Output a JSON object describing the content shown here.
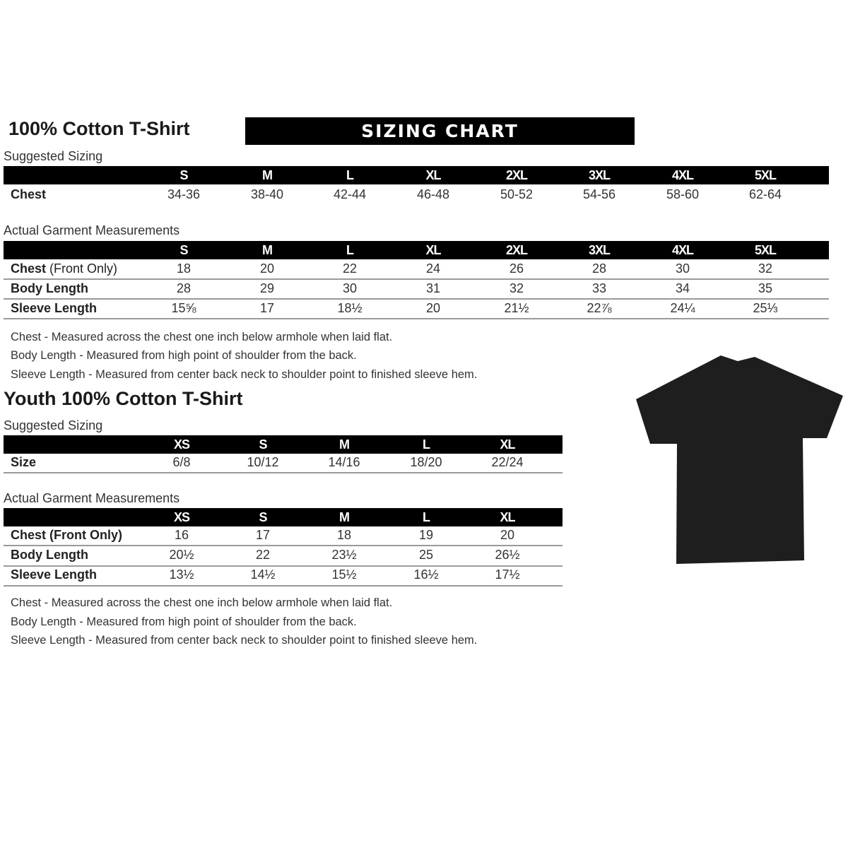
{
  "adult": {
    "title": "100% Cotton T-Shirt",
    "banner": "SIZING CHART",
    "suggested_label": "Suggested Sizing",
    "sizes": [
      "S",
      "M",
      "L",
      "XL",
      "2XL",
      "3XL",
      "4XL",
      "5XL"
    ],
    "suggested_rows": [
      {
        "label": "Chest",
        "values": [
          "34-36",
          "38-40",
          "42-44",
          "46-48",
          "50-52",
          "54-56",
          "58-60",
          "62-64"
        ]
      }
    ],
    "actual_label": "Actual Garment Measurements",
    "actual_rows": [
      {
        "label": "Chest",
        "label_suffix": " (Front Only)",
        "values": [
          "18",
          "20",
          "22",
          "24",
          "26",
          "28",
          "30",
          "32"
        ]
      },
      {
        "label": "Body Length",
        "values": [
          "28",
          "29",
          "30",
          "31",
          "32",
          "33",
          "34",
          "35"
        ]
      },
      {
        "label": "Sleeve Length",
        "values": [
          "15⅝",
          "17",
          "18½",
          "20",
          "21½",
          "22⅞",
          "24¼",
          "25⅓"
        ]
      }
    ],
    "notes": [
      "Chest - Measured across the chest one inch below armhole when laid flat.",
      "Body Length - Measured from high point of shoulder from the back.",
      "Sleeve Length - Measured from center back neck to shoulder point to finished sleeve hem."
    ]
  },
  "youth": {
    "title": "Youth 100% Cotton T-Shirt",
    "suggested_label": "Suggested Sizing",
    "sizes": [
      "XS",
      "S",
      "M",
      "L",
      "XL"
    ],
    "suggested_rows": [
      {
        "label": "Size",
        "values": [
          "6/8",
          "10/12",
          "14/16",
          "18/20",
          "22/24"
        ]
      }
    ],
    "actual_label": "Actual Garment Measurements",
    "actual_rows": [
      {
        "label": "Chest (Front Only)",
        "values": [
          "16",
          "17",
          "18",
          "19",
          "20"
        ]
      },
      {
        "label": "Body Length",
        "values": [
          "20½",
          "22",
          "23½",
          "25",
          "26½"
        ]
      },
      {
        "label": "Sleeve Length",
        "values": [
          "13½",
          "14½",
          "15½",
          "16½",
          "17½"
        ]
      }
    ],
    "notes": [
      "Chest - Measured across the chest one inch below armhole when laid flat.",
      "Body Length - Measured from high point of shoulder from the back.",
      "Sleeve Length - Measured from center back neck to shoulder point to finished sleeve hem."
    ]
  },
  "image": {
    "icon": "black-t-shirt-icon",
    "color": "#1e1e1e"
  }
}
